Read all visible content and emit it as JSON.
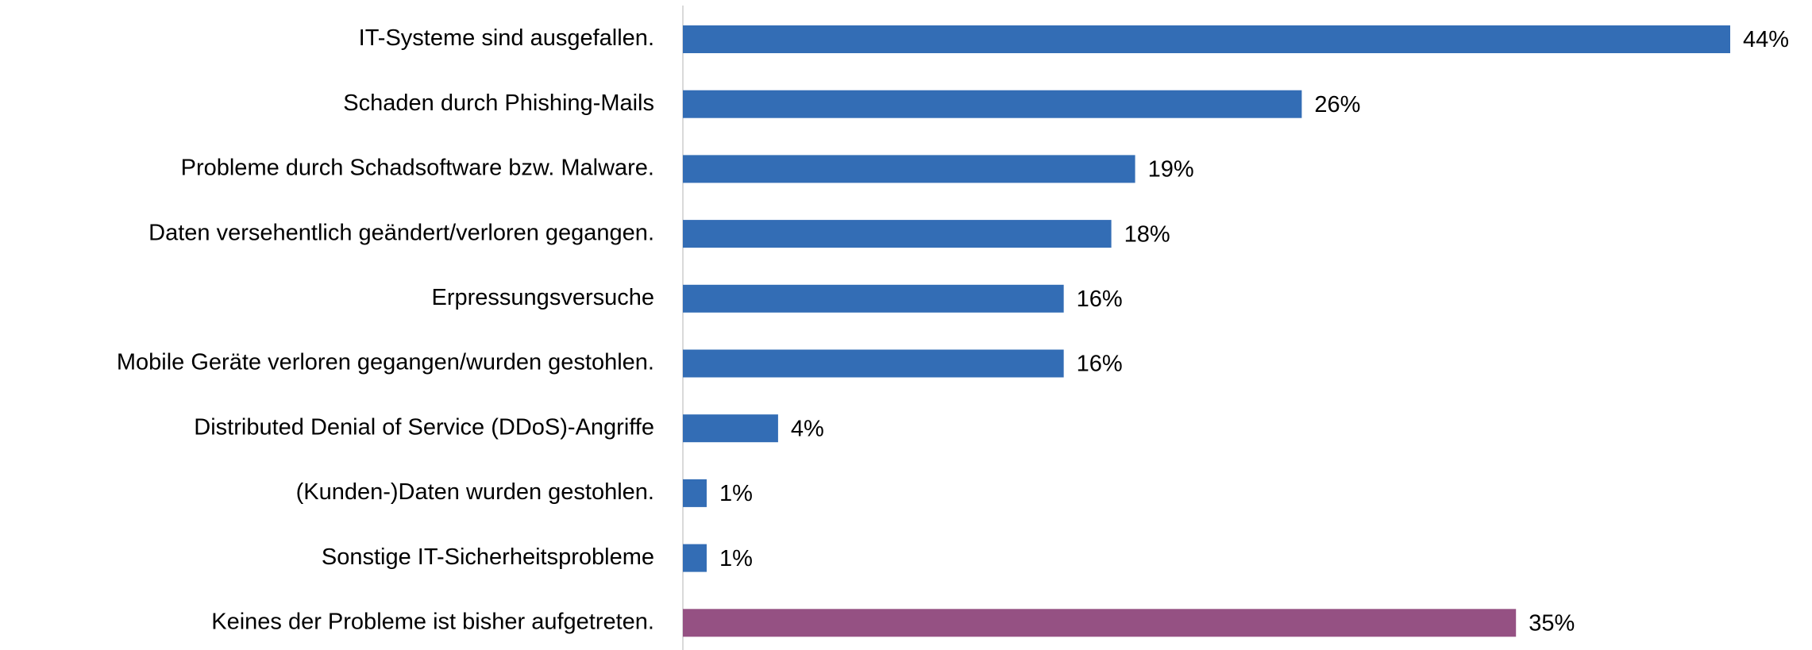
{
  "chart_data": {
    "type": "bar",
    "orientation": "horizontal",
    "categories": [
      "IT-Systeme sind ausgefallen.",
      "Schaden durch Phishing-Mails",
      "Probleme durch Schadsoftware bzw. Malware.",
      "Daten versehentlich geändert/verloren gegangen.",
      "Erpressungsversuche",
      "Mobile Geräte verloren gegangen/wurden gestohlen.",
      "Distributed Denial of Service (DDoS)-Angriffe",
      "(Kunden-)Daten wurden gestohlen.",
      "Sonstige IT-Sicherheitsprobleme",
      "Keines der Probleme ist bisher aufgetreten."
    ],
    "values": [
      44,
      26,
      19,
      18,
      16,
      16,
      4,
      1,
      1,
      35
    ],
    "value_labels": [
      "44%",
      "26%",
      "19%",
      "18%",
      "16%",
      "16%",
      "4%",
      "1%",
      "1%",
      "35%"
    ],
    "colors": [
      "#336db5",
      "#336db5",
      "#336db5",
      "#336db5",
      "#336db5",
      "#336db5",
      "#336db5",
      "#336db5",
      "#336db5",
      "#955183"
    ]
  }
}
